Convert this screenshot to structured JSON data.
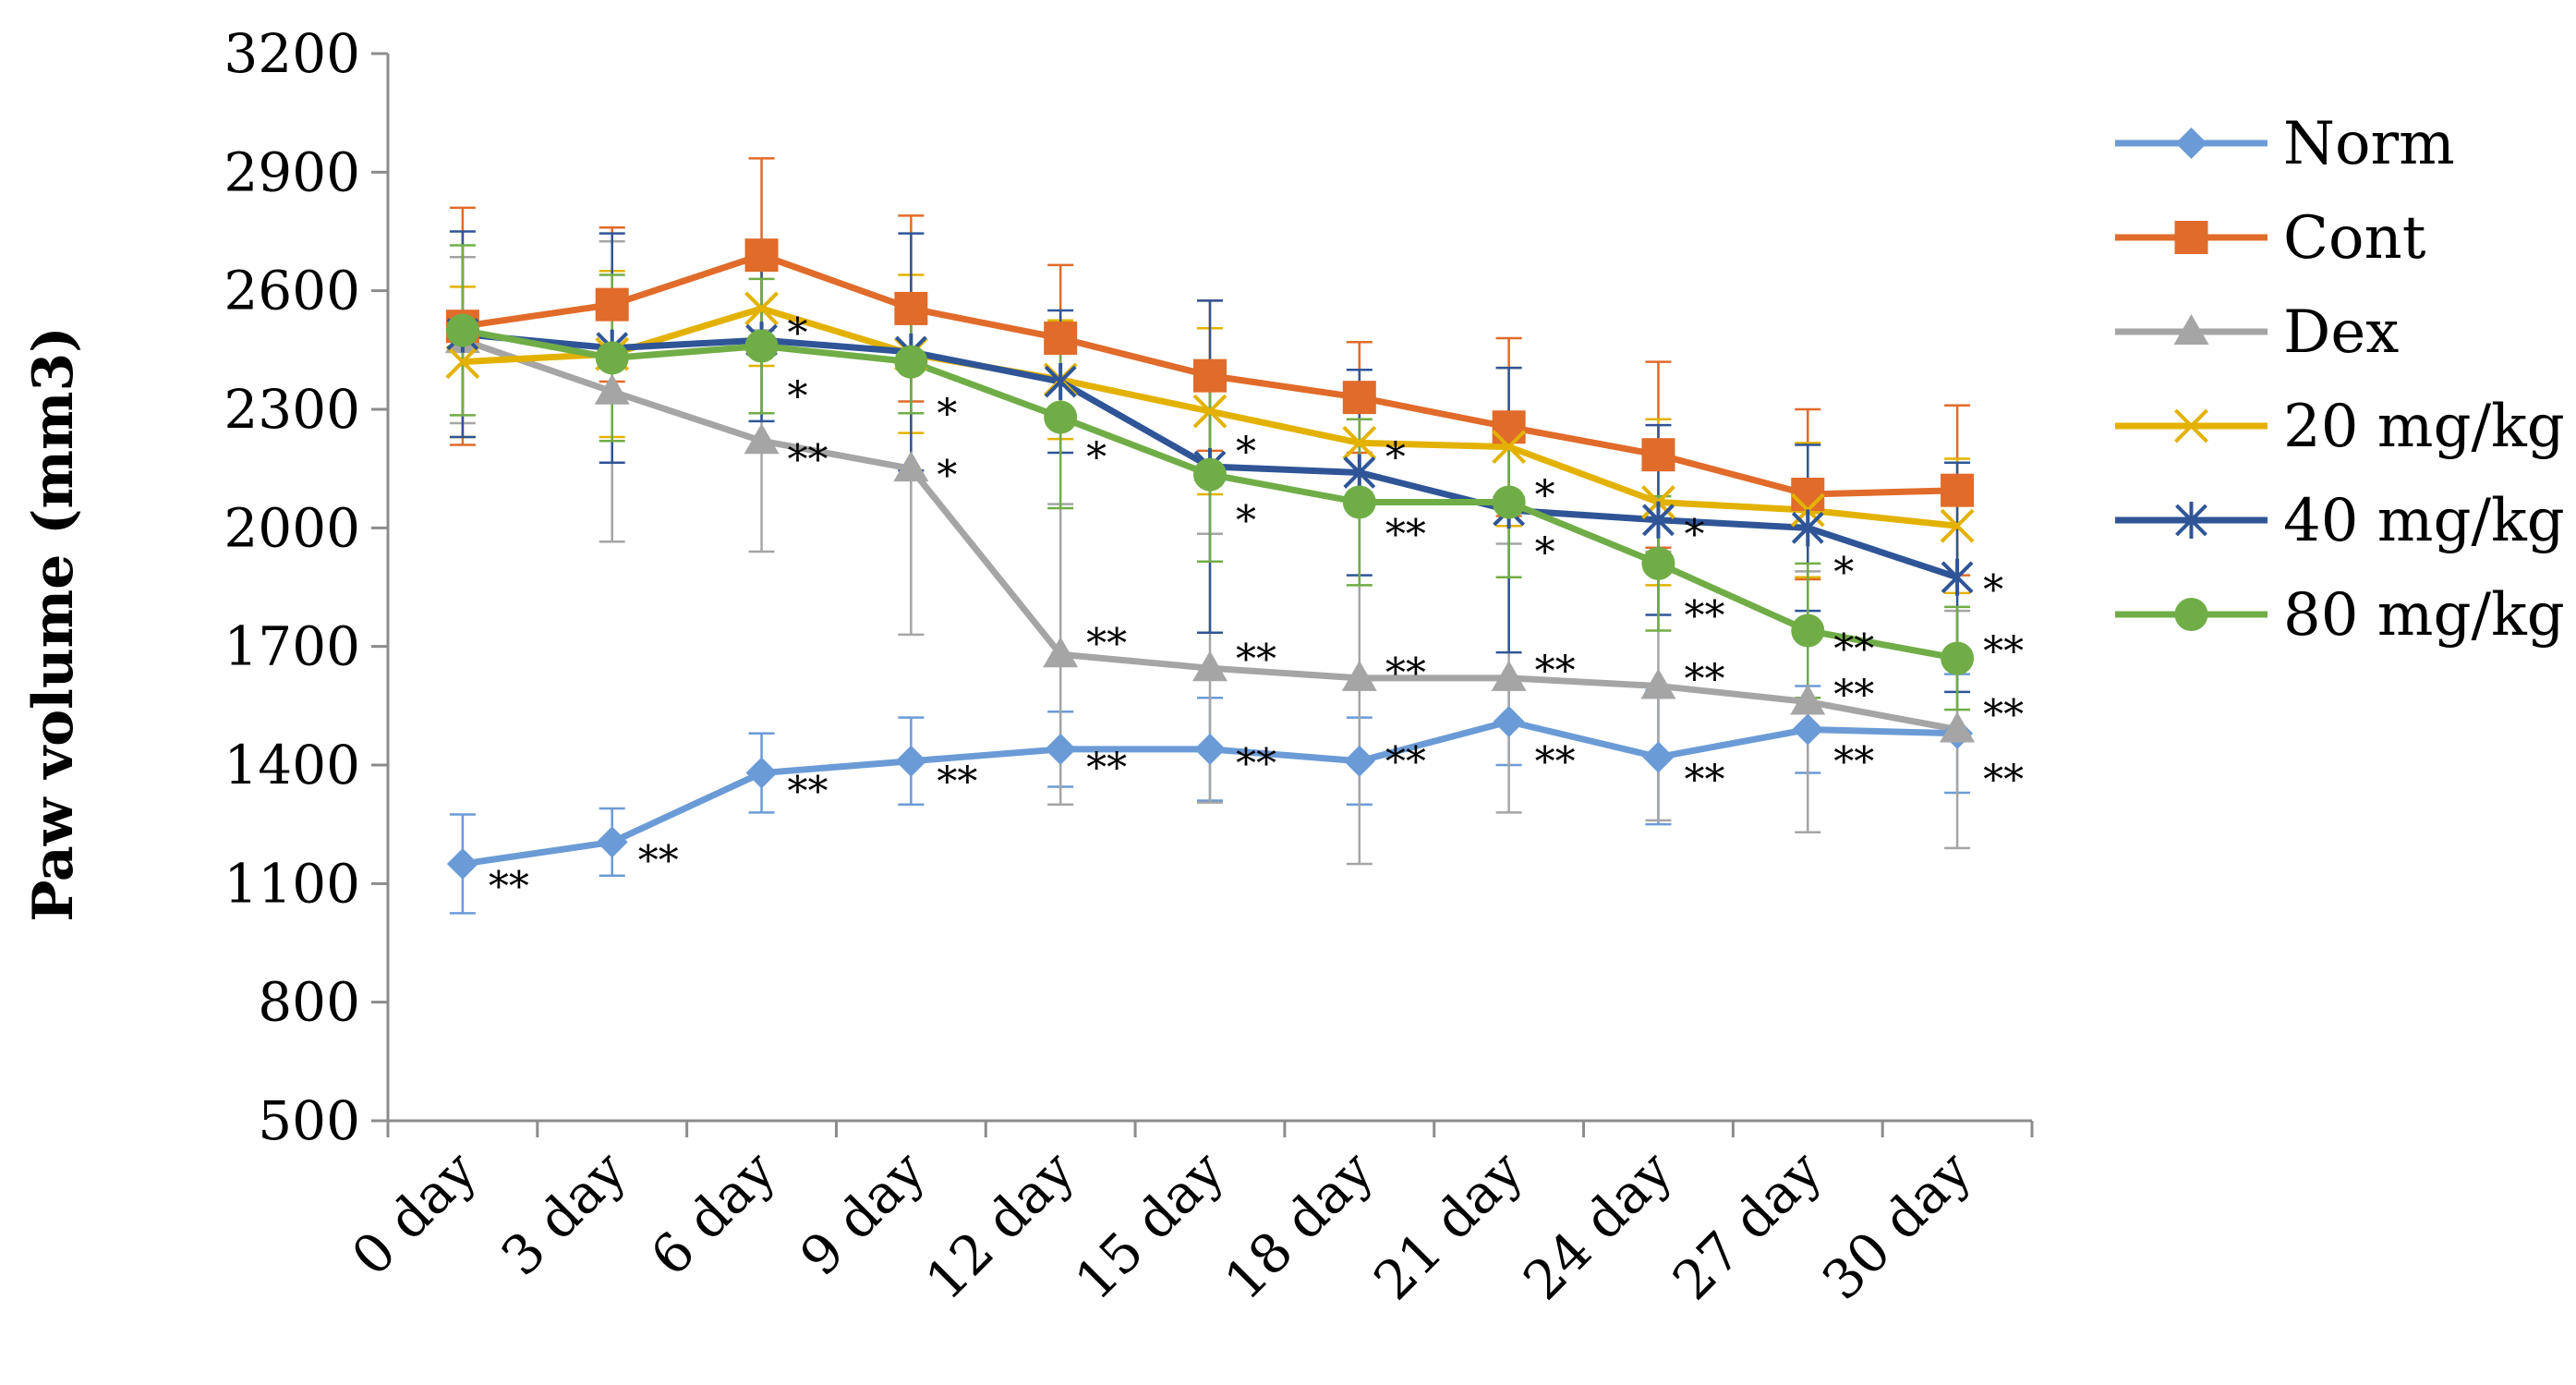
{
  "chart_data": {
    "type": "line",
    "title": "",
    "xlabel": "",
    "ylabel": "Paw volume (mm3)",
    "ylim": [
      500,
      3200
    ],
    "yticks": [
      500,
      800,
      1100,
      1400,
      1700,
      2000,
      2300,
      2600,
      2900,
      3200
    ],
    "categories": [
      "0 day",
      "3 day",
      "6 day",
      "9 day",
      "12 day",
      "15 day",
      "18 day",
      "21 day",
      "24 day",
      "27 day",
      "30 day"
    ],
    "grid": false,
    "legend_position": "right",
    "series": [
      {
        "name": "Norm",
        "color": "#6b9bd6",
        "marker": "diamond",
        "values": [
          1150,
          1205,
          1380,
          1410,
          1440,
          1440,
          1410,
          1510,
          1420,
          1490,
          1480
        ],
        "errors": [
          125,
          85,
          100,
          110,
          95,
          130,
          110,
          110,
          170,
          110,
          150
        ]
      },
      {
        "name": "Cont",
        "color": "#e06b2a",
        "marker": "square",
        "values": [
          2510,
          2565,
          2690,
          2555,
          2480,
          2385,
          2330,
          2255,
          2185,
          2085,
          2095
        ],
        "errors": [
          300,
          195,
          245,
          235,
          185,
          190,
          140,
          225,
          235,
          215,
          215
        ]
      },
      {
        "name": "Dex",
        "color": "#a5a5a5",
        "marker": "triangle",
        "values": [
          2475,
          2345,
          2220,
          2150,
          1680,
          1645,
          1620,
          1620,
          1600,
          1560,
          1490
        ],
        "errors": [
          210,
          380,
          280,
          420,
          380,
          340,
          470,
          340,
          340,
          330,
          300
        ]
      },
      {
        "name": "20 mg/kg",
        "color": "#e3b200",
        "marker": "x",
        "values": [
          2420,
          2440,
          2555,
          2440,
          2375,
          2295,
          2215,
          2205,
          2065,
          2045,
          2005
        ],
        "errors": [
          190,
          210,
          145,
          200,
          150,
          210,
          150,
          200,
          210,
          170,
          170
        ]
      },
      {
        "name": "40 mg/kg",
        "color": "#2f5597",
        "marker": "star",
        "values": [
          2490,
          2455,
          2475,
          2445,
          2370,
          2155,
          2140,
          2045,
          2020,
          2000,
          1875
        ],
        "errors": [
          260,
          290,
          205,
          300,
          180,
          420,
          260,
          360,
          240,
          210,
          290
        ]
      },
      {
        "name": "80 mg/kg",
        "color": "#70ad47",
        "marker": "circle",
        "values": [
          2500,
          2430,
          2460,
          2420,
          2280,
          2135,
          2065,
          2065,
          1910,
          1740,
          1670
        ],
        "errors": [
          215,
          210,
          170,
          130,
          230,
          220,
          210,
          190,
          170,
          170,
          130
        ]
      }
    ],
    "annotations": [
      {
        "label": "**",
        "category": 0,
        "value": 1100
      },
      {
        "label": "**",
        "category": 1,
        "value": 1165
      },
      {
        "label": "**",
        "category": 2,
        "value": 1340
      },
      {
        "label": "**",
        "category": 3,
        "value": 1365
      },
      {
        "label": "**",
        "category": 4,
        "value": 1400
      },
      {
        "label": "**",
        "category": 5,
        "value": 1410
      },
      {
        "label": "**",
        "category": 6,
        "value": 1415
      },
      {
        "label": "**",
        "category": 7,
        "value": 1415
      },
      {
        "label": "**",
        "category": 8,
        "value": 1370
      },
      {
        "label": "**",
        "category": 9,
        "value": 1415
      },
      {
        "label": "**",
        "category": 10,
        "value": 1370
      },
      {
        "label": "**",
        "category": 2,
        "value": 2180
      },
      {
        "label": "**",
        "category": 4,
        "value": 1715
      },
      {
        "label": "**",
        "category": 5,
        "value": 1675
      },
      {
        "label": "**",
        "category": 6,
        "value": 1640
      },
      {
        "label": "**",
        "category": 7,
        "value": 1645
      },
      {
        "label": "**",
        "category": 8,
        "value": 1625
      },
      {
        "label": "**",
        "category": 9,
        "value": 1585
      },
      {
        "label": "**",
        "category": 10,
        "value": 1535
      },
      {
        "label": "**",
        "category": 6,
        "value": 1990
      },
      {
        "label": "**",
        "category": 8,
        "value": 1785
      },
      {
        "label": "**",
        "category": 9,
        "value": 1700
      },
      {
        "label": "**",
        "category": 10,
        "value": 1695
      },
      {
        "label": "*",
        "category": 2,
        "value": 2500
      },
      {
        "label": "*",
        "category": 2,
        "value": 2340
      },
      {
        "label": "*",
        "category": 3,
        "value": 2295
      },
      {
        "label": "*",
        "category": 3,
        "value": 2140
      },
      {
        "label": "*",
        "category": 4,
        "value": 2185
      },
      {
        "label": "*",
        "category": 5,
        "value": 2200
      },
      {
        "label": "*",
        "category": 5,
        "value": 2025
      },
      {
        "label": "*",
        "category": 6,
        "value": 2185
      },
      {
        "label": "*",
        "category": 7,
        "value": 2090
      },
      {
        "label": "*",
        "category": 7,
        "value": 1945
      },
      {
        "label": "*",
        "category": 8,
        "value": 1990
      },
      {
        "label": "*",
        "category": 9,
        "value": 1895
      },
      {
        "label": "*",
        "category": 10,
        "value": 1850
      }
    ]
  }
}
